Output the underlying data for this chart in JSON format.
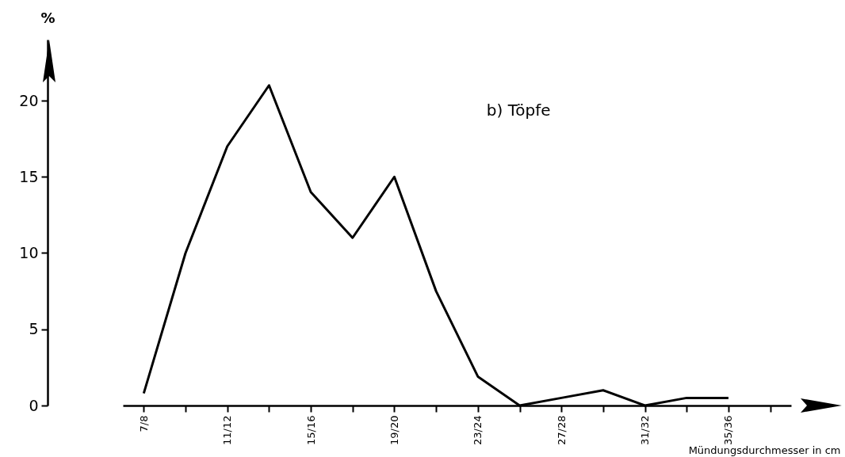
{
  "chart_data": {
    "type": "line",
    "title": "b) Töpfe",
    "xlabel": "Mündungsdurchmesser in cm",
    "ylabel": "%",
    "categories": [
      "7/8",
      null,
      "11/12",
      null,
      "15/16",
      null,
      "19/20",
      null,
      "23/24",
      null,
      "27/28",
      null,
      "31/32",
      null,
      "35/36",
      null
    ],
    "values": [
      0.8,
      10,
      17,
      21,
      14,
      11,
      15,
      7.5,
      1.9,
      0,
      0.5,
      1,
      0,
      0.5,
      0.5,
      null
    ],
    "color": "#000000",
    "ylim": [
      0,
      24
    ],
    "yticks": [
      0,
      5,
      10,
      15,
      20
    ],
    "grid": false,
    "legend": false,
    "marker": "none",
    "line_style": "solid"
  }
}
